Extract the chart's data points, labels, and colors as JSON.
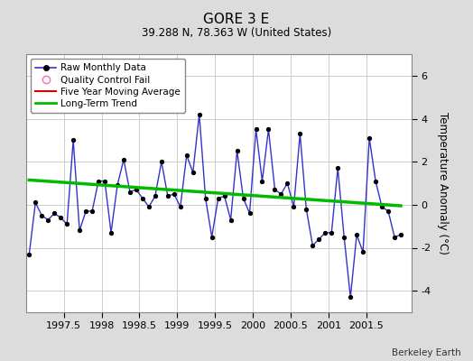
{
  "title": "GORE 3 E",
  "subtitle": "39.288 N, 78.363 W (United States)",
  "credit": "Berkeley Earth",
  "ylabel": "Temperature Anomaly (°C)",
  "xlim": [
    1997.0,
    2002.1
  ],
  "ylim": [
    -5.0,
    7.0
  ],
  "yticks": [
    -4,
    -2,
    0,
    2,
    4,
    6
  ],
  "xticks": [
    1997.5,
    1998.0,
    1998.5,
    1999.0,
    1999.5,
    2000.0,
    2000.5,
    2001.0,
    2001.5
  ],
  "xticklabels": [
    "1997.5",
    "1998",
    "1998.5",
    "1999",
    "1999.5",
    "2000",
    "2000.5",
    "2001",
    "2001.5"
  ],
  "background_color": "#dcdcdc",
  "plot_bg_color": "#ffffff",
  "raw_x": [
    1997.042,
    1997.125,
    1997.208,
    1997.292,
    1997.375,
    1997.458,
    1997.542,
    1997.625,
    1997.708,
    1997.792,
    1997.875,
    1997.958,
    1998.042,
    1998.125,
    1998.208,
    1998.292,
    1998.375,
    1998.458,
    1998.542,
    1998.625,
    1998.708,
    1998.792,
    1998.875,
    1998.958,
    1999.042,
    1999.125,
    1999.208,
    1999.292,
    1999.375,
    1999.458,
    1999.542,
    1999.625,
    1999.708,
    1999.792,
    1999.875,
    1999.958,
    2000.042,
    2000.125,
    2000.208,
    2000.292,
    2000.375,
    2000.458,
    2000.542,
    2000.625,
    2000.708,
    2000.792,
    2000.875,
    2000.958,
    2001.042,
    2001.125,
    2001.208,
    2001.292,
    2001.375,
    2001.458,
    2001.542,
    2001.625,
    2001.708,
    2001.792,
    2001.875,
    2001.958
  ],
  "raw_y": [
    -2.3,
    0.1,
    -0.5,
    -0.7,
    -0.4,
    -0.6,
    -0.9,
    3.0,
    -1.2,
    -0.3,
    -0.3,
    1.1,
    1.1,
    -1.3,
    0.9,
    2.1,
    0.6,
    0.7,
    0.3,
    -0.1,
    0.4,
    2.0,
    0.4,
    0.5,
    -0.1,
    2.3,
    1.5,
    4.2,
    0.3,
    -1.5,
    0.3,
    0.4,
    -0.7,
    2.5,
    0.3,
    -0.4,
    3.5,
    1.1,
    3.5,
    0.7,
    0.5,
    1.0,
    -0.1,
    3.3,
    -0.2,
    -1.9,
    -1.6,
    -1.3,
    -1.3,
    1.7,
    -1.5,
    -4.3,
    -1.4,
    -2.2,
    3.1,
    1.1,
    -0.1,
    -0.3,
    -1.5,
    -1.4
  ],
  "trend_x": [
    1997.042,
    2001.958
  ],
  "trend_y": [
    1.15,
    -0.05
  ],
  "line_color": "#3333cc",
  "marker_color": "#000000",
  "trend_color": "#00bb00",
  "mavg_color": "#dd0000",
  "legend_items": [
    {
      "label": "Raw Monthly Data",
      "color": "#3333cc",
      "type": "line_marker"
    },
    {
      "label": "Quality Control Fail",
      "color": "#ff69b4",
      "type": "circle"
    },
    {
      "label": "Five Year Moving Average",
      "color": "#dd0000",
      "type": "line"
    },
    {
      "label": "Long-Term Trend",
      "color": "#00bb00",
      "type": "line"
    }
  ]
}
